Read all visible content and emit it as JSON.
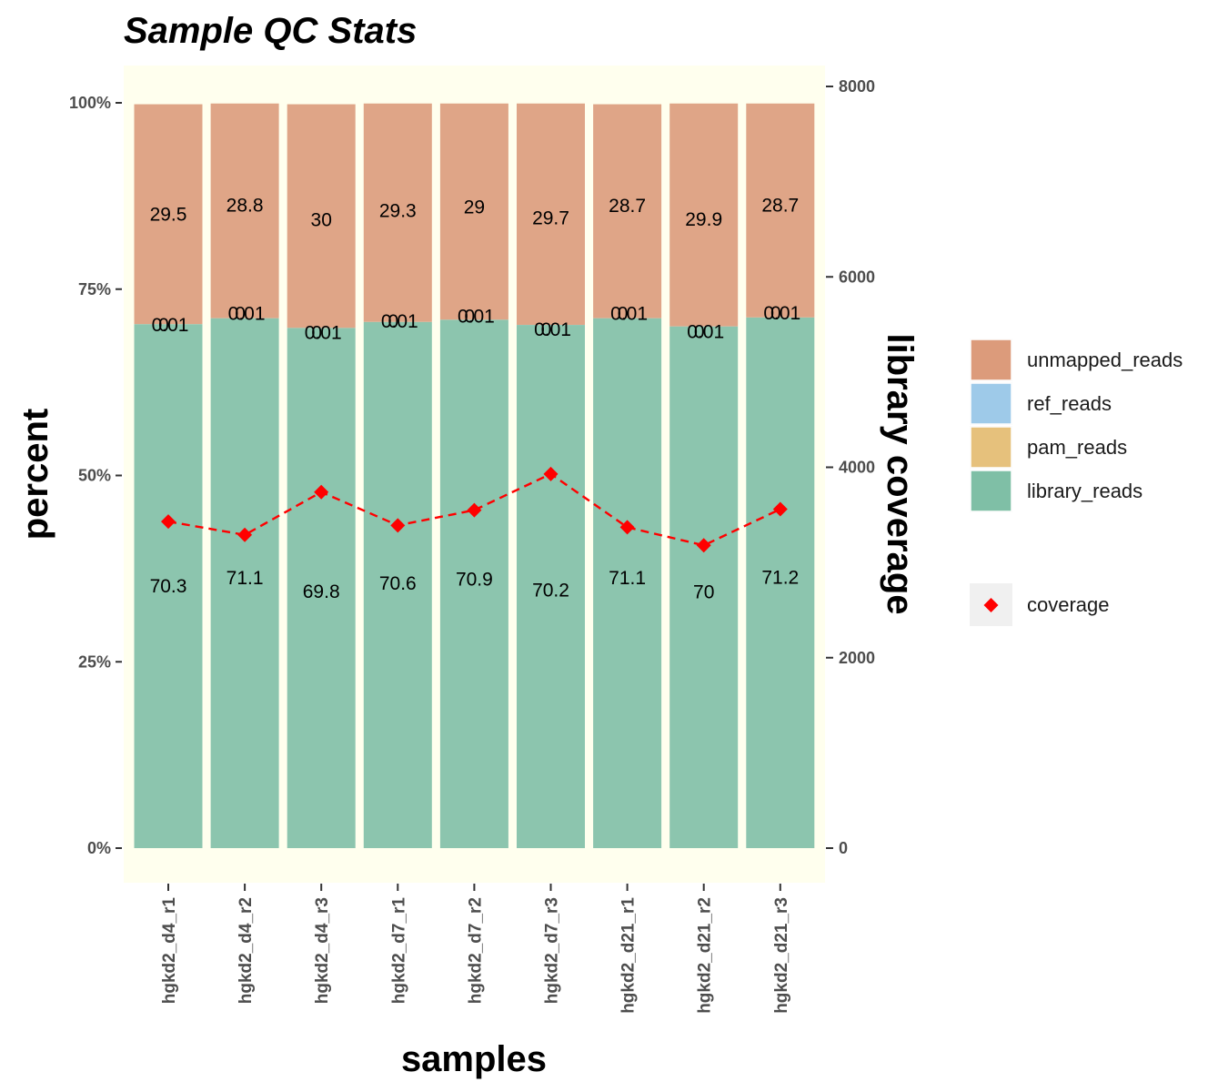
{
  "chart_data": {
    "type": "bar",
    "stacked": true,
    "title": "Sample QC Stats",
    "xlabel": "samples",
    "ylabel": "percent",
    "y2label": "library coverage",
    "categories": [
      "hgkd2_d4_r1",
      "hgkd2_d4_r2",
      "hgkd2_d4_r3",
      "hgkd2_d7_r1",
      "hgkd2_d7_r2",
      "hgkd2_d7_r3",
      "hgkd2_d21_r1",
      "hgkd2_d21_r2",
      "hgkd2_d21_r3"
    ],
    "ylim": [
      0,
      100
    ],
    "yticks": [
      "0%",
      "25%",
      "50%",
      "75%",
      "100%"
    ],
    "ytick_values": [
      0,
      25,
      50,
      75,
      100
    ],
    "y2lim": [
      0,
      8000
    ],
    "y2ticks": [
      "0",
      "2000",
      "4000",
      "6000",
      "8000"
    ],
    "y2tick_values": [
      0,
      2000,
      4000,
      6000,
      8000
    ],
    "series": [
      {
        "name": "library_reads",
        "color": "#7fbfa6",
        "values": [
          70.3,
          71.1,
          69.8,
          70.6,
          70.9,
          70.2,
          71.1,
          70,
          71.2
        ],
        "labels": [
          "70.3",
          "71.1",
          "69.8",
          "70.6",
          "70.9",
          "70.2",
          "71.1",
          "70",
          "71.2"
        ]
      },
      {
        "name": "pam_reads",
        "color": "#e6c17c",
        "values": [
          0,
          0,
          0,
          0,
          0,
          0,
          0,
          0,
          0
        ],
        "labels": [
          "0",
          "0",
          "0",
          "0",
          "0",
          "0",
          "0",
          "0",
          "0"
        ]
      },
      {
        "name": "ref_reads",
        "color": "#9ecae9",
        "values": [
          0.01,
          0.01,
          0.01,
          0.01,
          0.01,
          0.01,
          0.01,
          0.01,
          0.01
        ],
        "labels": [
          "0.01",
          "0.01",
          "0.01",
          "0.01",
          "0.01",
          "0.01",
          "0.01",
          "0.01",
          "0.01"
        ]
      },
      {
        "name": "unmapped_reads",
        "color": "#dc9b7b",
        "values": [
          29.5,
          28.8,
          30,
          29.3,
          29,
          29.7,
          28.7,
          29.9,
          28.7
        ],
        "labels": [
          "29.5",
          "28.8",
          "30",
          "29.3",
          "29",
          "29.7",
          "28.7",
          "29.9",
          "28.7"
        ]
      }
    ],
    "line": {
      "name": "coverage",
      "axis": "secondary",
      "color": "#ff0000",
      "style": "dashed",
      "marker": "diamond",
      "values": [
        3430,
        3290,
        3740,
        3390,
        3550,
        3930,
        3370,
        3180,
        3560
      ]
    },
    "legend": {
      "bars_order": [
        "unmapped_reads",
        "ref_reads",
        "pam_reads",
        "library_reads"
      ],
      "line_entry": "coverage",
      "placement": "right"
    },
    "panel_color": "#ffffee"
  }
}
